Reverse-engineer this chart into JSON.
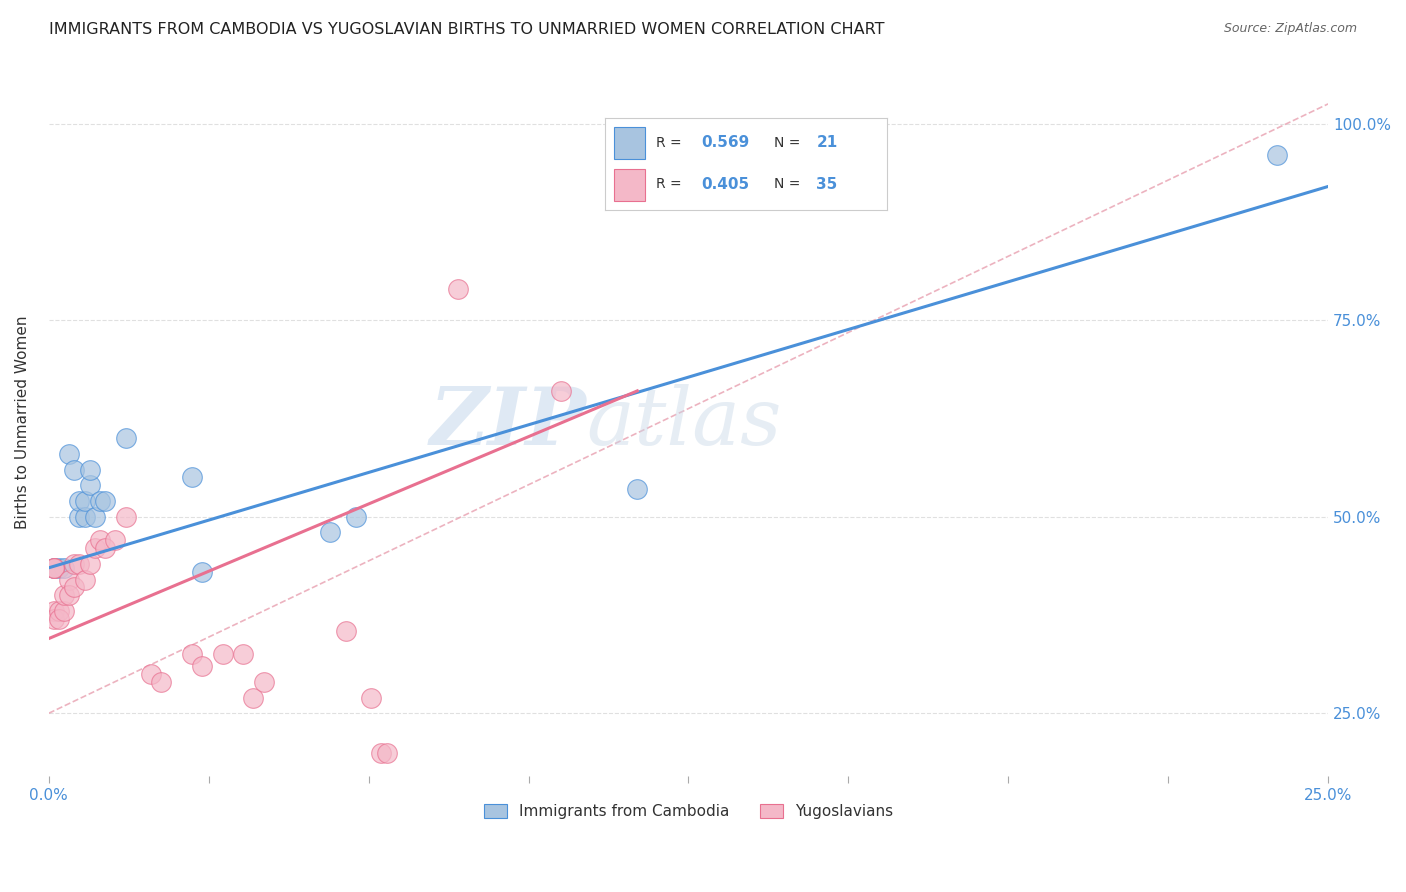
{
  "title": "IMMIGRANTS FROM CAMBODIA VS YUGOSLAVIAN BIRTHS TO UNMARRIED WOMEN CORRELATION CHART",
  "source": "Source: ZipAtlas.com",
  "ylabel": "Births to Unmarried Women",
  "right_yticks": [
    "25.0%",
    "50.0%",
    "75.0%",
    "100.0%"
  ],
  "right_ytick_vals": [
    0.25,
    0.5,
    0.75,
    1.0
  ],
  "legend_color1": "#a8c4e0",
  "legend_color2": "#f4b8c8",
  "scatter_blue": [
    [
      0.001,
      0.435
    ],
    [
      0.002,
      0.435
    ],
    [
      0.003,
      0.435
    ],
    [
      0.004,
      0.58
    ],
    [
      0.005,
      0.56
    ],
    [
      0.006,
      0.5
    ],
    [
      0.006,
      0.52
    ],
    [
      0.007,
      0.5
    ],
    [
      0.007,
      0.52
    ],
    [
      0.008,
      0.54
    ],
    [
      0.008,
      0.56
    ],
    [
      0.009,
      0.5
    ],
    [
      0.01,
      0.52
    ],
    [
      0.011,
      0.52
    ],
    [
      0.015,
      0.6
    ],
    [
      0.028,
      0.55
    ],
    [
      0.03,
      0.43
    ],
    [
      0.055,
      0.48
    ],
    [
      0.06,
      0.5
    ],
    [
      0.115,
      0.535
    ],
    [
      0.24,
      0.96
    ]
  ],
  "scatter_pink": [
    [
      0.001,
      0.435
    ],
    [
      0.001,
      0.435
    ],
    [
      0.001,
      0.435
    ],
    [
      0.001,
      0.38
    ],
    [
      0.001,
      0.37
    ],
    [
      0.002,
      0.38
    ],
    [
      0.002,
      0.37
    ],
    [
      0.003,
      0.38
    ],
    [
      0.003,
      0.4
    ],
    [
      0.004,
      0.42
    ],
    [
      0.004,
      0.4
    ],
    [
      0.005,
      0.41
    ],
    [
      0.005,
      0.44
    ],
    [
      0.006,
      0.44
    ],
    [
      0.007,
      0.42
    ],
    [
      0.008,
      0.44
    ],
    [
      0.009,
      0.46
    ],
    [
      0.01,
      0.47
    ],
    [
      0.011,
      0.46
    ],
    [
      0.013,
      0.47
    ],
    [
      0.015,
      0.5
    ],
    [
      0.02,
      0.3
    ],
    [
      0.022,
      0.29
    ],
    [
      0.028,
      0.325
    ],
    [
      0.03,
      0.31
    ],
    [
      0.034,
      0.325
    ],
    [
      0.038,
      0.325
    ],
    [
      0.04,
      0.27
    ],
    [
      0.042,
      0.29
    ],
    [
      0.058,
      0.355
    ],
    [
      0.063,
      0.27
    ],
    [
      0.065,
      0.2
    ],
    [
      0.066,
      0.2
    ],
    [
      0.08,
      0.79
    ],
    [
      0.1,
      0.66
    ]
  ],
  "line_blue": {
    "x": [
      0.0,
      0.25
    ],
    "y": [
      0.435,
      0.92
    ]
  },
  "line_pink": {
    "x": [
      0.0,
      0.115
    ],
    "y": [
      0.345,
      0.66
    ]
  },
  "diagonal_dashed": {
    "x": [
      0.0,
      0.25
    ],
    "y": [
      0.25,
      1.025
    ]
  },
  "xlim": [
    0.0,
    0.25
  ],
  "ylim": [
    0.17,
    1.07
  ],
  "yticks": [
    0.25,
    0.5,
    0.75,
    1.0
  ],
  "bg_color": "#ffffff",
  "grid_color": "#e0e0e0",
  "blue_scatter_color": "#a8c4e0",
  "pink_scatter_color": "#f4b8c8",
  "blue_line_color": "#4a90d9",
  "pink_line_color": "#e87090",
  "diag_color": "#e8a0b0",
  "watermark_zip": "ZIP",
  "watermark_atlas": "atlas",
  "legend_r1": "0.569",
  "legend_n1": "21",
  "legend_r2": "0.405",
  "legend_n2": "35"
}
